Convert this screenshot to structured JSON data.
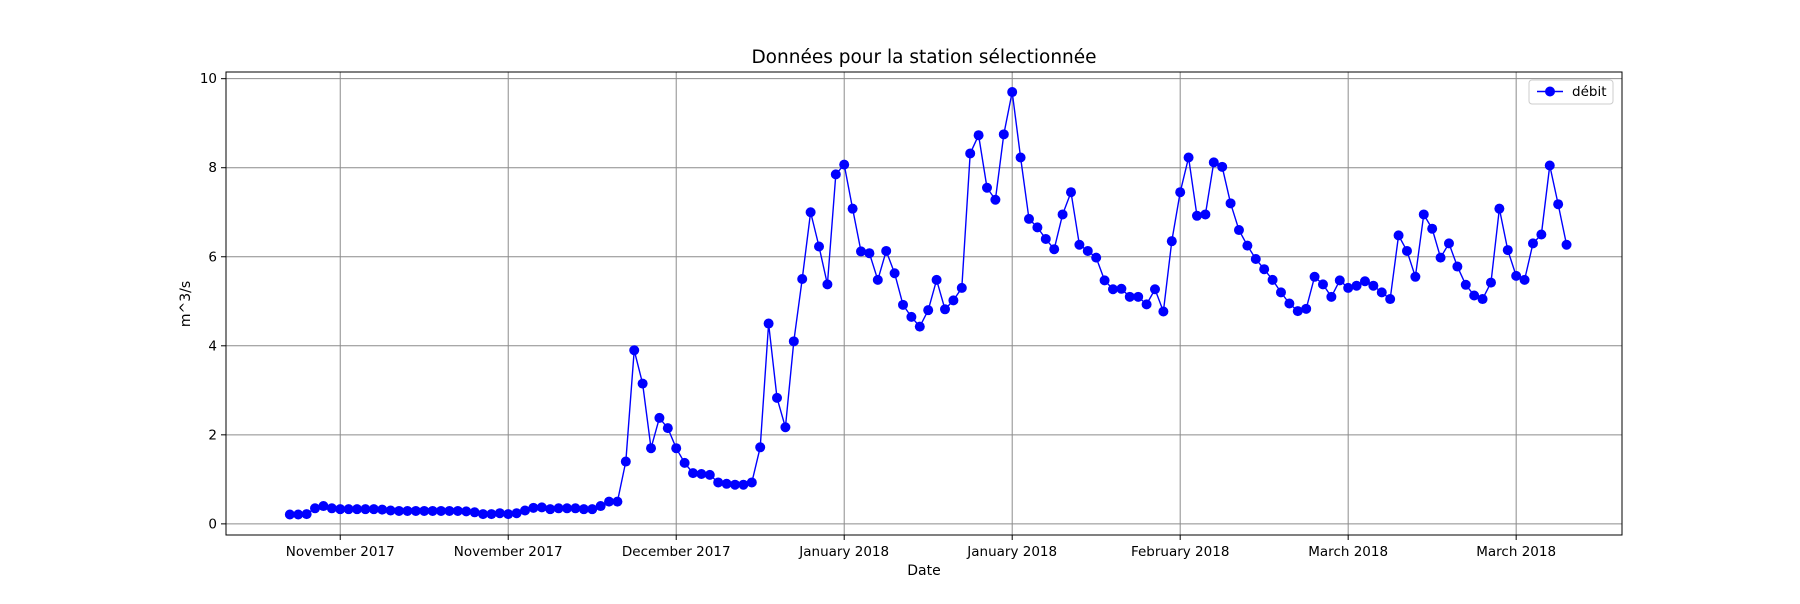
{
  "chart_data": {
    "type": "line",
    "title": "Données pour la station sélectionnée",
    "xlabel": "Date",
    "ylabel": "m^3/s",
    "ylim": [
      -0.25,
      10.15
    ],
    "yticks": [
      0,
      2,
      4,
      6,
      8,
      10
    ],
    "ytick_labels": [
      "0",
      "2",
      "4",
      "6",
      "8",
      "10"
    ],
    "grid": true,
    "legend_position": "top-right",
    "xtick_labels": [
      "November 2017",
      "November 2017",
      "December 2017",
      "January 2018",
      "January 2018",
      "February 2018",
      "March 2018",
      "March 2018"
    ],
    "xtick_index": [
      6,
      26,
      46,
      66,
      86,
      106,
      126,
      146
    ],
    "x_index_range": [
      -7.6,
      158.6
    ],
    "series": [
      {
        "name": "débit",
        "color": "#0000ff",
        "marker": "circle",
        "values": [
          0.21,
          0.21,
          0.22,
          0.35,
          0.4,
          0.35,
          0.33,
          0.33,
          0.33,
          0.33,
          0.33,
          0.32,
          0.3,
          0.29,
          0.29,
          0.29,
          0.29,
          0.29,
          0.29,
          0.29,
          0.29,
          0.28,
          0.26,
          0.22,
          0.22,
          0.24,
          0.22,
          0.24,
          0.3,
          0.36,
          0.37,
          0.33,
          0.35,
          0.35,
          0.35,
          0.33,
          0.33,
          0.4,
          0.5,
          0.5,
          1.4,
          3.9,
          3.15,
          1.7,
          2.38,
          2.15,
          1.7,
          1.37,
          1.14,
          1.12,
          1.1,
          0.93,
          0.9,
          0.88,
          0.88,
          0.93,
          1.72,
          4.5,
          2.83,
          2.17,
          4.1,
          5.5,
          7.0,
          6.23,
          5.38,
          7.85,
          8.07,
          7.08,
          6.12,
          6.08,
          5.48,
          6.13,
          5.63,
          4.92,
          4.65,
          4.43,
          4.8,
          5.48,
          4.82,
          5.02,
          5.3,
          8.32,
          8.73,
          7.55,
          7.28,
          8.75,
          9.7,
          8.23,
          6.85,
          6.66,
          6.4,
          6.17,
          6.95,
          7.45,
          6.27,
          6.13,
          5.98,
          5.47,
          5.27,
          5.28,
          5.1,
          5.1,
          4.93,
          5.27,
          4.77,
          6.35,
          7.45,
          8.23,
          6.92,
          6.95,
          8.12,
          8.02,
          7.2,
          6.6,
          6.25,
          5.95,
          5.72,
          5.48,
          5.2,
          4.95,
          4.78,
          4.83,
          5.55,
          5.38,
          5.1,
          5.47,
          5.3,
          5.35,
          5.45,
          5.35,
          5.2,
          5.05,
          6.48,
          6.13,
          5.55,
          6.95,
          6.63,
          5.98,
          6.3,
          5.78,
          5.37,
          5.13,
          5.05,
          5.42,
          7.08,
          6.15,
          5.57,
          5.48,
          6.3,
          6.5,
          8.05,
          7.18,
          6.27
        ]
      }
    ]
  }
}
